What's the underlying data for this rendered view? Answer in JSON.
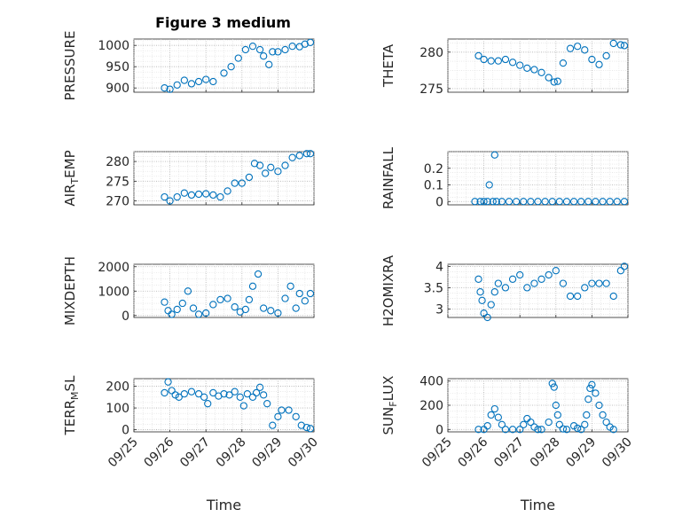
{
  "figure_title": "Figure 3 medium",
  "chart_data": [
    {
      "type": "scatter",
      "panel": "left-row1",
      "ylabel": "PRESSURE",
      "xlim": [
        0,
        5
      ],
      "ylim": [
        890,
        1015
      ],
      "yticks": [
        900,
        950,
        1000
      ],
      "ytick_labels": [
        "900",
        "950",
        "1000"
      ],
      "series": [
        {
          "name": "PRESSURE",
          "color": "#0072BD",
          "marker": "circle",
          "x": [
            0.85,
            1.0,
            1.2,
            1.4,
            1.6,
            1.8,
            2.0,
            2.2,
            2.5,
            2.7,
            2.9,
            3.1,
            3.3,
            3.5,
            3.6,
            3.75,
            3.85,
            4.0,
            4.2,
            4.4,
            4.6,
            4.75,
            4.9
          ],
          "y": [
            900,
            897,
            907,
            918,
            910,
            915,
            920,
            915,
            935,
            950,
            970,
            990,
            998,
            990,
            975,
            955,
            985,
            985,
            990,
            998,
            997,
            1003,
            1007
          ]
        }
      ]
    },
    {
      "type": "scatter",
      "panel": "right-row1",
      "ylabel": "THETA",
      "xlim": [
        0,
        5
      ],
      "ylim": [
        274.5,
        281.8
      ],
      "yticks": [
        275,
        280
      ],
      "ytick_labels": [
        "275",
        "280"
      ],
      "series": [
        {
          "name": "THETA",
          "color": "#0072BD",
          "marker": "circle",
          "x": [
            0.85,
            1.0,
            1.2,
            1.4,
            1.6,
            1.8,
            2.0,
            2.2,
            2.4,
            2.6,
            2.8,
            2.95,
            3.05,
            3.2,
            3.4,
            3.6,
            3.8,
            4.0,
            4.2,
            4.4,
            4.6,
            4.8,
            4.9
          ],
          "y": [
            279.5,
            279,
            278.8,
            278.8,
            279.0,
            278.6,
            278.2,
            277.8,
            277.6,
            277.2,
            276.5,
            275.9,
            276.0,
            278.5,
            280.5,
            280.8,
            280.3,
            279.0,
            278.3,
            279.5,
            281.2,
            281.0,
            280.9
          ]
        }
      ]
    },
    {
      "type": "scatter",
      "panel": "left-row2",
      "ylabel": "AIR_TEMP",
      "xlim": [
        0,
        5
      ],
      "ylim": [
        269,
        282.5
      ],
      "yticks": [
        270,
        275,
        280
      ],
      "ytick_labels": [
        "270",
        "275",
        "280"
      ],
      "series": [
        {
          "name": "AIR_TEMP",
          "color": "#0072BD",
          "marker": "circle",
          "x": [
            0.85,
            1.0,
            1.2,
            1.4,
            1.6,
            1.8,
            2.0,
            2.2,
            2.4,
            2.6,
            2.8,
            3.0,
            3.2,
            3.35,
            3.5,
            3.65,
            3.8,
            4.0,
            4.2,
            4.4,
            4.6,
            4.8,
            4.9
          ],
          "y": [
            271,
            270,
            271,
            272,
            271.5,
            271.7,
            271.8,
            271.5,
            271.0,
            272.5,
            274.5,
            274.5,
            276.0,
            279.5,
            279.0,
            277.0,
            278.5,
            277.5,
            279.0,
            281.0,
            281.5,
            282.0,
            282.0
          ]
        }
      ]
    },
    {
      "type": "scatter",
      "panel": "right-row2",
      "ylabel": "RAINFALL",
      "xlim": [
        0,
        5
      ],
      "ylim": [
        -0.02,
        0.3
      ],
      "yticks": [
        0,
        0.1,
        0.2
      ],
      "ytick_labels": [
        "0",
        "0.1",
        "0.2"
      ],
      "series": [
        {
          "name": "RAINFALL",
          "color": "#0072BD",
          "marker": "circle",
          "x": [
            0.75,
            0.9,
            1.0,
            1.1,
            1.15,
            1.25,
            1.3,
            1.35,
            1.5,
            1.7,
            1.9,
            2.1,
            2.3,
            2.5,
            2.7,
            2.9,
            3.1,
            3.3,
            3.5,
            3.7,
            3.9,
            4.1,
            4.3,
            4.5,
            4.7,
            4.9
          ],
          "y": [
            0,
            0,
            0,
            0,
            0.1,
            0,
            0.28,
            0,
            0,
            0,
            0,
            0,
            0,
            0,
            0,
            0,
            0,
            0,
            0,
            0,
            0,
            0,
            0,
            0,
            0,
            0
          ]
        }
      ]
    },
    {
      "type": "scatter",
      "panel": "left-row3",
      "ylabel": "MIXDEPTH",
      "xlim": [
        0,
        5
      ],
      "ylim": [
        -80,
        2100
      ],
      "yticks": [
        0,
        1000,
        2000
      ],
      "ytick_labels": [
        "0",
        "1000",
        "2000"
      ],
      "series": [
        {
          "name": "MIXDEPTH",
          "color": "#0072BD",
          "marker": "circle",
          "x": [
            0.85,
            0.95,
            1.05,
            1.2,
            1.35,
            1.5,
            1.65,
            1.8,
            2.0,
            2.2,
            2.4,
            2.6,
            2.8,
            2.95,
            3.1,
            3.2,
            3.3,
            3.45,
            3.6,
            3.8,
            4.0,
            4.2,
            4.35,
            4.5,
            4.6,
            4.75,
            4.9
          ],
          "y": [
            550,
            200,
            50,
            250,
            500,
            1000,
            300,
            50,
            100,
            450,
            650,
            700,
            350,
            150,
            250,
            650,
            1200,
            1700,
            300,
            200,
            100,
            700,
            1200,
            300,
            900,
            600,
            900
          ]
        }
      ]
    },
    {
      "type": "scatter",
      "panel": "right-row3",
      "ylabel": "H2OMIXRA",
      "xlim": [
        0,
        5
      ],
      "ylim": [
        2.8,
        4.05
      ],
      "yticks": [
        3,
        3.5,
        4
      ],
      "ytick_labels": [
        "3",
        "3.5",
        "4"
      ],
      "series": [
        {
          "name": "H2OMIXRA",
          "color": "#0072BD",
          "marker": "circle",
          "x": [
            0.85,
            0.9,
            0.95,
            1.0,
            1.1,
            1.2,
            1.3,
            1.4,
            1.6,
            1.8,
            2.0,
            2.2,
            2.4,
            2.6,
            2.8,
            3.0,
            3.2,
            3.4,
            3.6,
            3.8,
            4.0,
            4.2,
            4.4,
            4.6,
            4.8,
            4.9
          ],
          "y": [
            3.7,
            3.4,
            3.2,
            2.9,
            2.8,
            3.1,
            3.4,
            3.6,
            3.5,
            3.7,
            3.8,
            3.5,
            3.6,
            3.7,
            3.8,
            3.9,
            3.6,
            3.3,
            3.3,
            3.5,
            3.6,
            3.6,
            3.6,
            3.3,
            3.9,
            4.0
          ]
        }
      ]
    },
    {
      "type": "scatter",
      "panel": "left-row4",
      "ylabel": "TERR_MSL",
      "xlim": [
        0,
        5
      ],
      "ylim": [
        -10,
        235
      ],
      "yticks": [
        0,
        100,
        200
      ],
      "ytick_labels": [
        "0",
        "100",
        "200"
      ],
      "series": [
        {
          "name": "TERR_MSL",
          "color": "#0072BD",
          "marker": "circle",
          "x": [
            0.85,
            0.95,
            1.05,
            1.15,
            1.25,
            1.4,
            1.6,
            1.8,
            1.95,
            2.05,
            2.2,
            2.35,
            2.5,
            2.65,
            2.8,
            2.95,
            3.05,
            3.15,
            3.3,
            3.4,
            3.5,
            3.6,
            3.7,
            3.85,
            4.0,
            4.1,
            4.3,
            4.5,
            4.65,
            4.8,
            4.9
          ],
          "y": [
            170,
            220,
            180,
            160,
            150,
            165,
            175,
            165,
            150,
            120,
            170,
            155,
            165,
            160,
            175,
            150,
            110,
            165,
            150,
            170,
            195,
            160,
            120,
            20,
            60,
            90,
            90,
            60,
            20,
            10,
            5
          ]
        }
      ]
    },
    {
      "type": "scatter",
      "panel": "right-row4",
      "ylabel": "SUN_FLUX",
      "xlim": [
        0,
        5
      ],
      "ylim": [
        -20,
        420
      ],
      "yticks": [
        0,
        200,
        400
      ],
      "ytick_labels": [
        "0",
        "200",
        "400"
      ],
      "series": [
        {
          "name": "SUN_FLUX",
          "color": "#0072BD",
          "marker": "circle",
          "x": [
            0.85,
            1.0,
            1.1,
            1.2,
            1.3,
            1.4,
            1.5,
            1.6,
            1.8,
            2.0,
            2.1,
            2.2,
            2.3,
            2.4,
            2.5,
            2.6,
            2.8,
            2.9,
            2.95,
            3.0,
            3.05,
            3.1,
            3.2,
            3.3,
            3.5,
            3.6,
            3.7,
            3.8,
            3.85,
            3.9,
            3.95,
            4.0,
            4.1,
            4.2,
            4.3,
            4.4,
            4.5,
            4.6
          ],
          "y": [
            0,
            0,
            30,
            120,
            170,
            100,
            40,
            0,
            0,
            0,
            40,
            90,
            60,
            20,
            0,
            0,
            60,
            380,
            350,
            200,
            120,
            40,
            5,
            0,
            30,
            10,
            0,
            40,
            120,
            250,
            340,
            370,
            300,
            200,
            120,
            60,
            20,
            0
          ]
        }
      ]
    }
  ],
  "x_axis": {
    "label": "Time",
    "tick_labels": [
      "09/25",
      "09/26",
      "09/27",
      "09/28",
      "09/29",
      "09/30"
    ]
  }
}
